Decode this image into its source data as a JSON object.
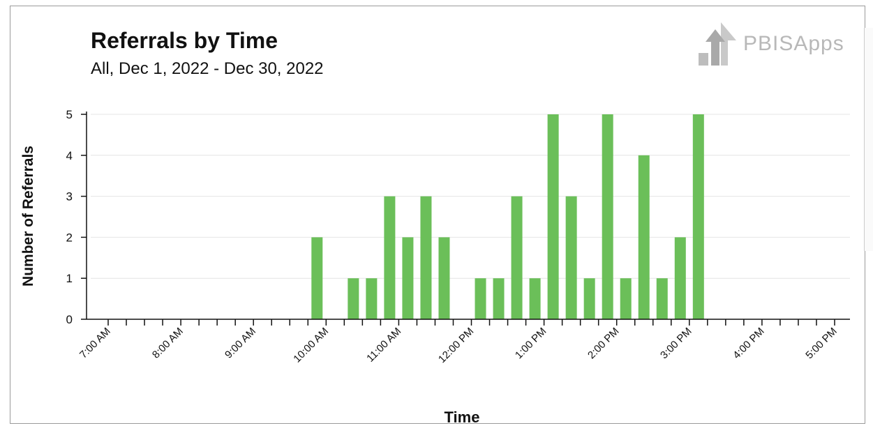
{
  "chart_data": {
    "type": "bar",
    "title": "Referrals by Time",
    "subtitle": "All, Dec 1, 2022 - Dec 30, 2022",
    "xlabel": "Time",
    "ylabel": "Number of Referrals",
    "ylim": [
      0,
      5
    ],
    "yticks": [
      "0",
      "1",
      "2",
      "3",
      "4",
      "5"
    ],
    "xtick_labels": [
      "7:00 AM",
      "8:00 AM",
      "9:00 AM",
      "10:00 AM",
      "11:00 AM",
      "12:00 PM",
      "1:00 PM",
      "2:00 PM",
      "3:00 PM",
      "4:00 PM",
      "5:00 PM"
    ],
    "bar_color": "#6bbf59",
    "bin_minutes": 15,
    "bars": [
      {
        "time": "9:45 AM",
        "value": 2
      },
      {
        "time": "10:15 AM",
        "value": 1
      },
      {
        "time": "10:30 AM",
        "value": 1
      },
      {
        "time": "10:45 AM",
        "value": 3
      },
      {
        "time": "11:00 AM",
        "value": 2
      },
      {
        "time": "11:15 AM",
        "value": 3
      },
      {
        "time": "11:30 AM",
        "value": 2
      },
      {
        "time": "12:00 PM",
        "value": 1
      },
      {
        "time": "12:15 PM",
        "value": 1
      },
      {
        "time": "12:30 PM",
        "value": 3
      },
      {
        "time": "12:45 PM",
        "value": 1
      },
      {
        "time": "1:00 PM",
        "value": 5
      },
      {
        "time": "1:15 PM",
        "value": 3
      },
      {
        "time": "1:30 PM",
        "value": 1
      },
      {
        "time": "1:45 PM",
        "value": 5
      },
      {
        "time": "2:00 PM",
        "value": 1
      },
      {
        "time": "2:15 PM",
        "value": 4
      },
      {
        "time": "2:30 PM",
        "value": 1
      },
      {
        "time": "2:45 PM",
        "value": 2
      },
      {
        "time": "3:00 PM",
        "value": 5
      }
    ]
  },
  "logo": {
    "text": "PBISApps"
  }
}
